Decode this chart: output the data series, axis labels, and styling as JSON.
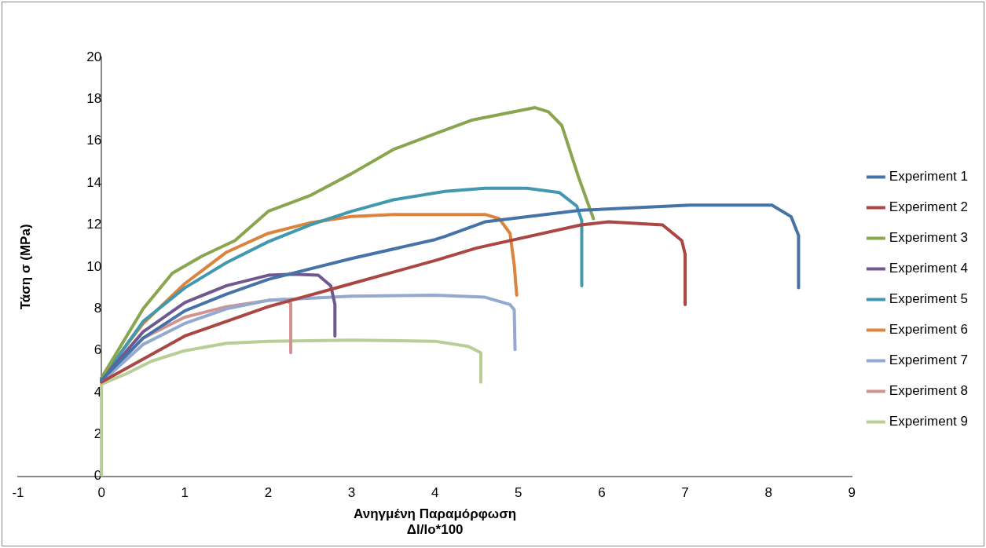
{
  "chart_data": {
    "type": "line",
    "xlabel": "Ανηγμένη Παραμόρφωση\nΔl/lo*100",
    "ylabel": "Τάση σ (MPa)",
    "xlim": [
      -1,
      9
    ],
    "xticks": [
      -1,
      0,
      1,
      2,
      3,
      4,
      5,
      6,
      7,
      8,
      9
    ],
    "ylim": [
      0,
      20
    ],
    "yticks": [
      0,
      2,
      4,
      6,
      8,
      10,
      12,
      14,
      16,
      18,
      20
    ],
    "grid": false,
    "legend": "right",
    "marker": "none",
    "line_style": "solid",
    "series": [
      {
        "name": "Experiment 1",
        "color": "#4572a7",
        "x": [
          0,
          0.5,
          1,
          1.5,
          2,
          3,
          4,
          4.12,
          4.6,
          5.75,
          7.06,
          8.04,
          8.27,
          8.36,
          8.36
        ],
        "values": [
          4.6,
          6.6,
          7.9,
          8.7,
          9.4,
          10.4,
          11.3,
          11.45,
          12.15,
          12.7,
          12.95,
          12.95,
          12.4,
          11.5,
          9.0
        ]
      },
      {
        "name": "Experiment 2",
        "color": "#aa4643",
        "x": [
          0,
          1,
          2,
          3,
          4,
          4.5,
          5.75,
          6.08,
          6.73,
          6.96,
          7.0,
          7.0
        ],
        "values": [
          4.5,
          6.7,
          8.1,
          9.2,
          10.3,
          10.9,
          12.0,
          12.15,
          12.0,
          11.25,
          10.6,
          8.2
        ]
      },
      {
        "name": "Experiment 3",
        "color": "#89a54e",
        "x": [
          0,
          0.5,
          0.85,
          1.2,
          1.6,
          2,
          2.5,
          3,
          3.5,
          4,
          4.44,
          5.2,
          5.36,
          5.52,
          5.72,
          5.9
        ],
        "values": [
          4.7,
          8.0,
          9.7,
          10.5,
          11.25,
          12.65,
          13.4,
          14.45,
          15.6,
          16.35,
          17.0,
          17.6,
          17.4,
          16.75,
          14.3,
          12.3
        ]
      },
      {
        "name": "Experiment 4",
        "color": "#71588f",
        "x": [
          0,
          0.5,
          1,
          1.5,
          2,
          2.3,
          2.6,
          2.75,
          2.8,
          2.8
        ],
        "values": [
          4.6,
          6.9,
          8.3,
          9.1,
          9.6,
          9.65,
          9.6,
          9.1,
          8.2,
          6.7
        ]
      },
      {
        "name": "Experiment 5",
        "color": "#4198af",
        "x": [
          0,
          0.5,
          1,
          1.5,
          2,
          2.5,
          3,
          3.5,
          4.12,
          4.6,
          5.1,
          5.49,
          5.7,
          5.76,
          5.76
        ],
        "values": [
          4.6,
          7.4,
          9.0,
          10.2,
          11.2,
          12.0,
          12.65,
          13.2,
          13.6,
          13.75,
          13.75,
          13.55,
          12.9,
          12.2,
          9.1
        ]
      },
      {
        "name": "Experiment 6",
        "color": "#db843d",
        "x": [
          0,
          0.5,
          1,
          1.5,
          2,
          2.5,
          3,
          3.5,
          4,
          4.6,
          4.77,
          4.9,
          4.95,
          4.98
        ],
        "values": [
          4.7,
          7.3,
          9.2,
          10.7,
          11.6,
          12.1,
          12.4,
          12.5,
          12.5,
          12.5,
          12.3,
          11.6,
          10.1,
          8.65
        ]
      },
      {
        "name": "Experiment 7",
        "color": "#93a9cf",
        "x": [
          0,
          0.5,
          1,
          1.5,
          2,
          3,
          4,
          4.6,
          4.9,
          4.95,
          4.96
        ],
        "values": [
          4.5,
          6.3,
          7.3,
          8.0,
          8.4,
          8.6,
          8.65,
          8.55,
          8.2,
          7.95,
          6.05
        ]
      },
      {
        "name": "Experiment 8",
        "color": "#d19392",
        "x": [
          0,
          0.5,
          1,
          1.5,
          2,
          2.2,
          2.27,
          2.27
        ],
        "values": [
          4.5,
          6.6,
          7.6,
          8.1,
          8.4,
          8.45,
          8.25,
          5.9
        ]
      },
      {
        "name": "Experiment 9",
        "color": "#b9cd96",
        "x": [
          0,
          0,
          0.3,
          0.6,
          1,
          1.5,
          2,
          3,
          4,
          4.4,
          4.55,
          4.55
        ],
        "values": [
          0,
          4.4,
          4.9,
          5.5,
          6.0,
          6.35,
          6.45,
          6.5,
          6.45,
          6.2,
          5.9,
          4.5
        ]
      }
    ]
  }
}
